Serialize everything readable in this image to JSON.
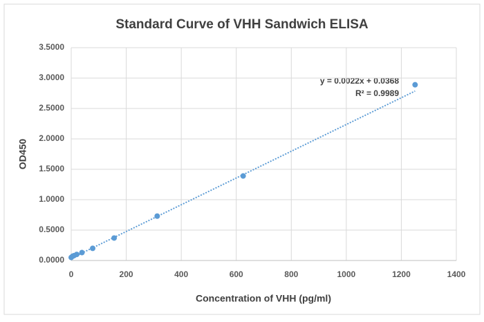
{
  "chart_data": {
    "type": "scatter",
    "title": "Standard Curve of VHH Sandwich ELISA",
    "x_label": "Concentration of VHH (pg/ml)",
    "y_label": "OD450",
    "x": [
      0,
      5,
      10,
      20,
      39,
      78,
      156,
      312.5,
      625,
      1250
    ],
    "values": [
      0.05,
      0.07,
      0.08,
      0.1,
      0.13,
      0.2,
      0.37,
      0.73,
      1.39,
      2.89
    ],
    "color": "#5b9bd5",
    "xlim": [
      0,
      1400
    ],
    "xticks": [
      0,
      200,
      400,
      600,
      800,
      1000,
      1200,
      1400
    ],
    "ylim": [
      0,
      3.5
    ],
    "yticks": [
      {
        "value": 0,
        "label": "0.0000"
      },
      {
        "value": 0.5,
        "label": "0.5000"
      },
      {
        "value": 1,
        "label": "1.0000"
      },
      {
        "value": 1.5,
        "label": "1.5000"
      },
      {
        "value": 2,
        "label": "2.0000"
      },
      {
        "value": 2.5,
        "label": "2.5000"
      },
      {
        "value": 3,
        "label": "3.0000"
      },
      {
        "value": 3.5,
        "label": "3.5000"
      }
    ],
    "grid": true,
    "trendline": {
      "equation": "y = 0.0022x + 0.0368",
      "r_squared": "R² = 0.9989",
      "slope": 0.0022,
      "intercept": 0.0368
    }
  }
}
